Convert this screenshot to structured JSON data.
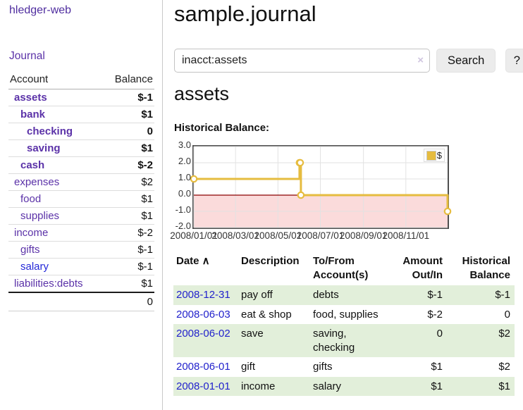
{
  "colors": {
    "accent_purple": "#5b32a8",
    "brand_purple": "#4f2d9f",
    "link_blue": "#2327d8",
    "date_link_blue": "#2222cc",
    "negative_strong": "#8b0000",
    "negative_soft": "#c2747f",
    "row_stripe_green": "#e2efda",
    "chart_gold": "#e6bc3f",
    "chart_negative_region": "#fbdbdb",
    "chart_zero_line": "#8b0000"
  },
  "sidebar": {
    "brand": "hledger-web",
    "journal_label": "Journal",
    "accounts_table": {
      "headers": {
        "account": "Account",
        "balance": "Balance"
      },
      "rows": [
        {
          "label": "assets",
          "indent": 0,
          "bold": true,
          "balance": "$-1",
          "balance_tone": "negative"
        },
        {
          "label": "bank",
          "indent": 1,
          "bold": true,
          "balance": "$1",
          "balance_tone": "normal"
        },
        {
          "label": "checking",
          "indent": 2,
          "bold": true,
          "balance": "0",
          "balance_tone": "normal"
        },
        {
          "label": "saving",
          "indent": 2,
          "bold": true,
          "balance": "$1",
          "balance_tone": "normal"
        },
        {
          "label": "cash",
          "indent": 1,
          "bold": true,
          "balance": "$-2",
          "balance_tone": "negative"
        },
        {
          "label": "expenses",
          "indent": 0,
          "bold": false,
          "balance": "$2",
          "balance_tone": "normal"
        },
        {
          "label": "food",
          "indent": 1,
          "bold": false,
          "balance": "$1",
          "balance_tone": "normal"
        },
        {
          "label": "supplies",
          "indent": 1,
          "bold": false,
          "balance": "$1",
          "balance_tone": "normal"
        },
        {
          "label": "income",
          "indent": 0,
          "bold": false,
          "balance": "$-2",
          "balance_tone": "negative-soft"
        },
        {
          "label": "gifts",
          "indent": 1,
          "bold": false,
          "balance": "$-1",
          "balance_tone": "negative-soft"
        },
        {
          "label": "salary",
          "indent": 1,
          "bold": false,
          "balance": "$-1",
          "balance_tone": "negative-soft",
          "link_tone": "blue"
        },
        {
          "label": "liabilities:debts",
          "indent": 0,
          "bold": false,
          "balance": "$1",
          "balance_tone": "normal"
        }
      ],
      "total": "0"
    }
  },
  "header": {
    "title": "sample.journal"
  },
  "search": {
    "value": "inacct:assets",
    "clear_icon": "×",
    "button_label": "Search",
    "help_label": "?"
  },
  "account_page": {
    "heading": "assets",
    "chart_heading": "Historical Balance:"
  },
  "chart_data": {
    "type": "line",
    "title": "Historical Balance",
    "step": true,
    "x_start": "2008-01-01",
    "x_end": "2008-12-31",
    "series": [
      {
        "name": "$",
        "color": "#e6bc3f",
        "points": [
          {
            "date": "2008-01-01",
            "value": 1
          },
          {
            "date": "2008-06-01",
            "value": 2
          },
          {
            "date": "2008-06-02",
            "value": 2
          },
          {
            "date": "2008-06-03",
            "value": 0
          },
          {
            "date": "2008-12-31",
            "value": -1
          }
        ]
      }
    ],
    "y_ticks": [
      "3.0",
      "2.0",
      "1.0",
      "0.0",
      "-1.0",
      "-2.0"
    ],
    "x_tick_labels": [
      "2008/01/01",
      "2008/03/01",
      "2008/05/01",
      "2008/07/01",
      "2008/09/01",
      "2008/11/01"
    ],
    "ylim": [
      -2,
      3
    ],
    "grid": true,
    "legend": {
      "label": "$",
      "position": "top-right"
    },
    "negative_region": {
      "from": 0,
      "to": -2,
      "color": "#fbdbdb"
    },
    "zero_line_color": "#8b0000"
  },
  "transactions": {
    "headers": [
      {
        "label": "Date",
        "sort_indicator": "∧"
      },
      {
        "label": "Description"
      },
      {
        "label": "To/From Account(s)"
      },
      {
        "label": "Amount Out/In",
        "align": "right"
      },
      {
        "label": "Historical Balance",
        "align": "right"
      }
    ],
    "rows": [
      {
        "date": "2008-12-31",
        "description": "pay off",
        "accounts": [
          "debts"
        ],
        "amount": "$-1",
        "amount_negative": true,
        "balance": "$-1",
        "balance_negative": true
      },
      {
        "date": "2008-06-03",
        "description": "eat & shop",
        "accounts": [
          "food",
          "supplies"
        ],
        "amount": "$-2",
        "amount_negative": true,
        "balance": "0",
        "balance_negative": false
      },
      {
        "date": "2008-06-02",
        "description": "save",
        "accounts": [
          "saving",
          "checking"
        ],
        "amount": "0",
        "amount_negative": false,
        "balance": "$2",
        "balance_negative": false
      },
      {
        "date": "2008-06-01",
        "description": "gift",
        "accounts": [
          "gifts"
        ],
        "amount": "$1",
        "amount_negative": false,
        "balance": "$2",
        "balance_negative": false
      },
      {
        "date": "2008-01-01",
        "description": "income",
        "accounts": [
          "salary"
        ],
        "amount": "$1",
        "amount_negative": false,
        "balance": "$1",
        "balance_negative": false
      }
    ]
  }
}
